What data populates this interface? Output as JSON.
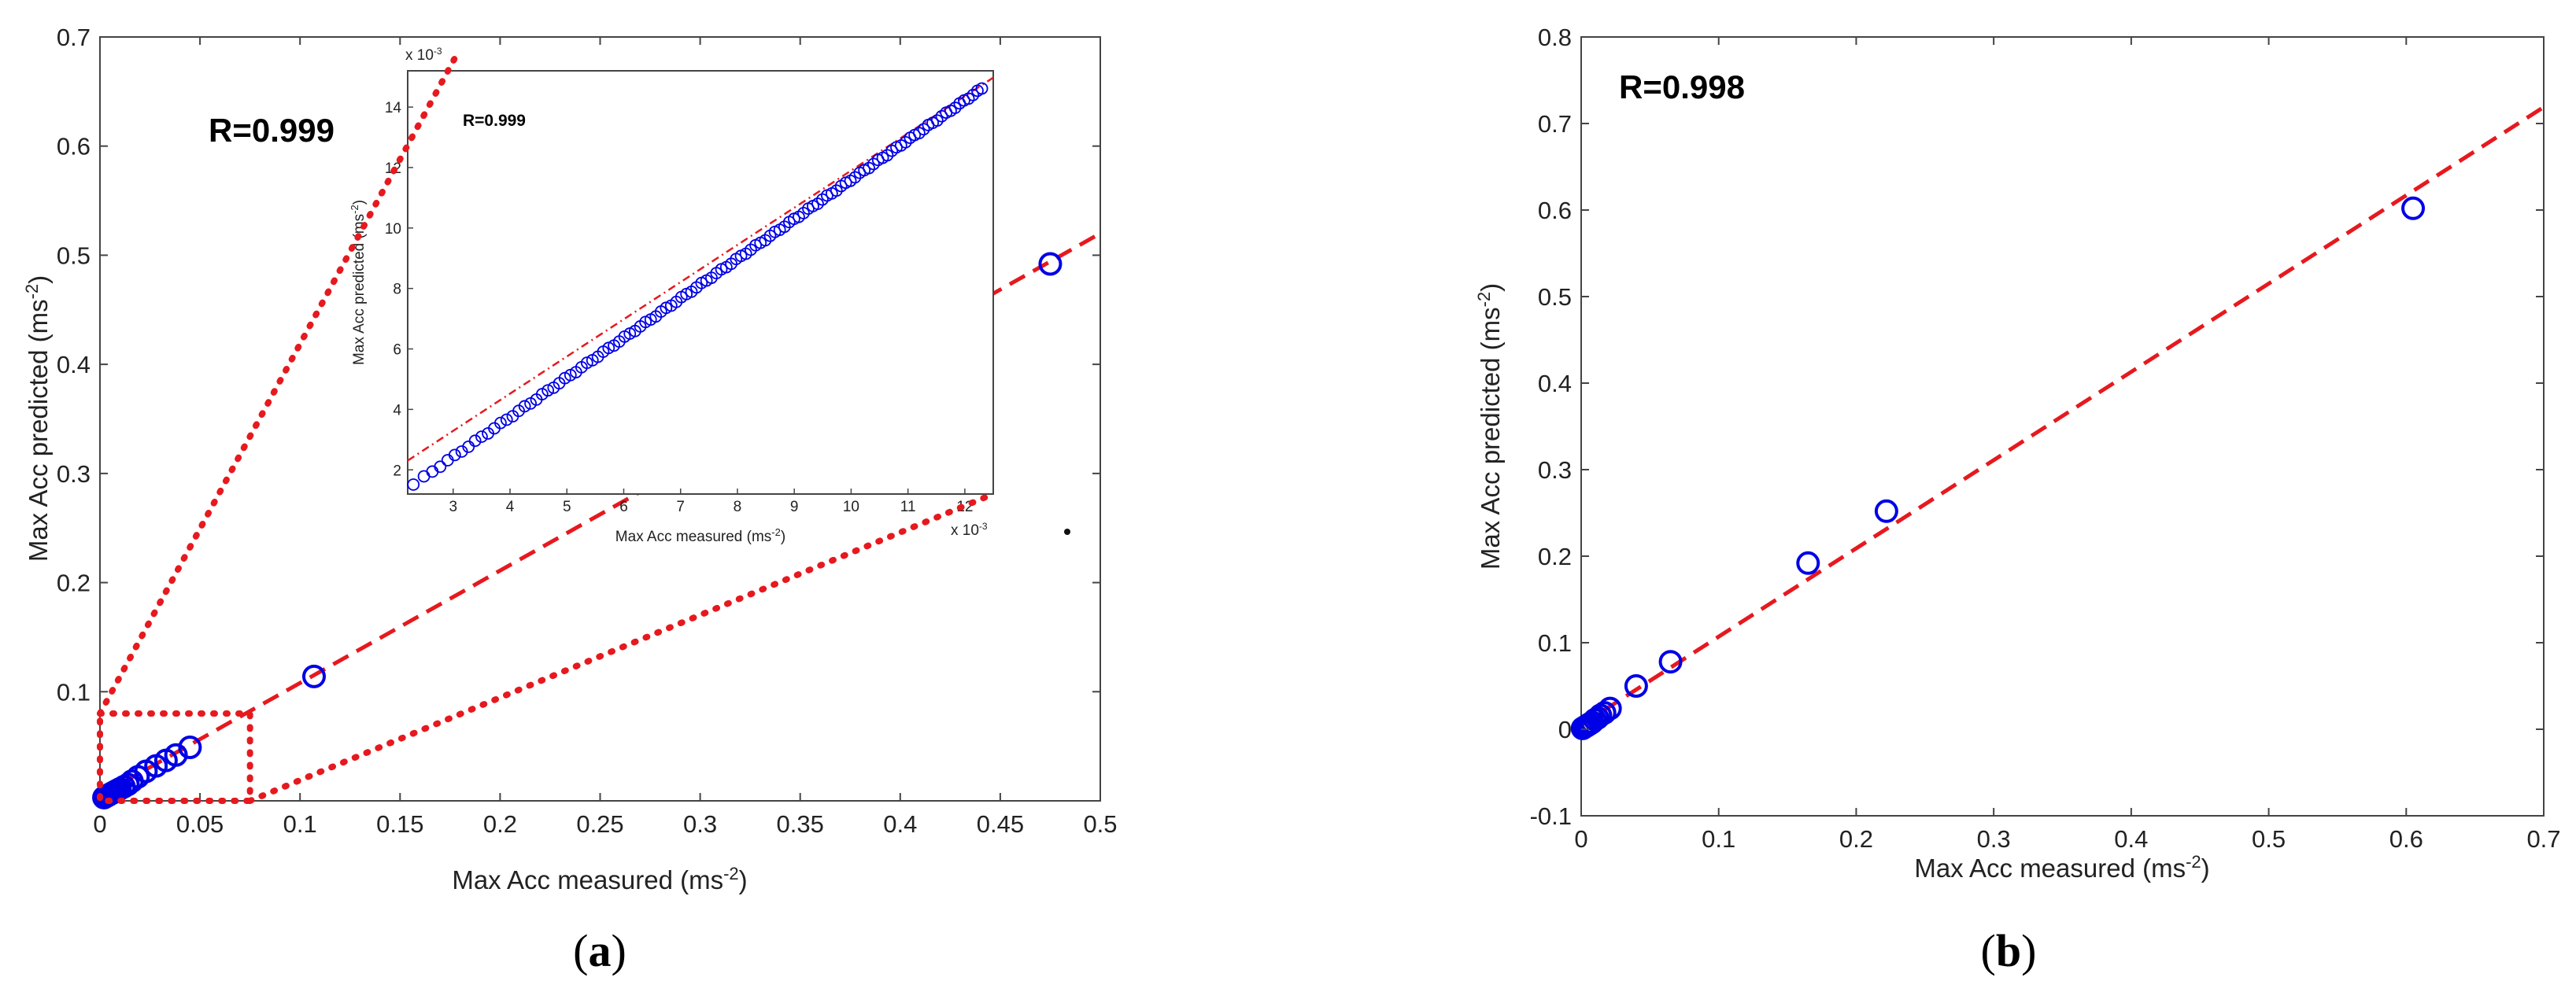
{
  "colors": {
    "marker": "#0000e6",
    "fit_line": "#e6191e",
    "zoom_box": "#e6191e",
    "axis": "#444444"
  },
  "chart_data": [
    {
      "id": "a",
      "type": "scatter",
      "panel_label": "a",
      "annotation": "R=0.999",
      "xlabel": "Max Acc measured (ms-2)",
      "ylabel": "Max Acc predicted (ms-2)",
      "xlim": [
        0,
        0.5
      ],
      "ylim": [
        0,
        0.7
      ],
      "xticks": [
        0,
        0.05,
        0.1,
        0.15,
        0.2,
        0.25,
        0.3,
        0.35,
        0.4,
        0.45,
        0.5
      ],
      "yticks": [
        0.1,
        0.2,
        0.3,
        0.4,
        0.5,
        0.6,
        0.7
      ],
      "xtick_labels": [
        "0",
        "0.05",
        "0.1",
        "0.15",
        "0.2",
        "0.25",
        "0.3",
        "0.35",
        "0.4",
        "0.45",
        "0.5"
      ],
      "ytick_labels": [
        "0.1",
        "0.2",
        "0.3",
        "0.4",
        "0.5",
        "0.6",
        "0.7"
      ],
      "grid": false,
      "fit_line": {
        "slope": 1.03,
        "intercept": 0.005,
        "style": "dashed"
      },
      "zoom_box": {
        "x": [
          0,
          0.075
        ],
        "y": [
          0,
          0.08
        ]
      },
      "points": [
        [
          0.002,
          0.003
        ],
        [
          0.003,
          0.004
        ],
        [
          0.004,
          0.005
        ],
        [
          0.005,
          0.006
        ],
        [
          0.006,
          0.007
        ],
        [
          0.007,
          0.008
        ],
        [
          0.008,
          0.009
        ],
        [
          0.009,
          0.01
        ],
        [
          0.01,
          0.011
        ],
        [
          0.012,
          0.013
        ],
        [
          0.014,
          0.015
        ],
        [
          0.016,
          0.018
        ],
        [
          0.019,
          0.022
        ],
        [
          0.023,
          0.027
        ],
        [
          0.028,
          0.032
        ],
        [
          0.033,
          0.037
        ],
        [
          0.038,
          0.042
        ],
        [
          0.045,
          0.049
        ],
        [
          0.107,
          0.114
        ],
        [
          0.475,
          0.492
        ]
      ],
      "inset": {
        "annotation": "R=0.999",
        "xlabel": "Max Acc measured (ms-2)",
        "ylabel": "Max Acc predicted (ms-2)",
        "x_multiplier": "x 10-3",
        "y_multiplier": "x 10-3",
        "xlim": [
          2.2,
          12.5
        ],
        "ylim": [
          1.2,
          15.2
        ],
        "xticks": [
          3,
          4,
          5,
          6,
          7,
          8,
          9,
          10,
          11,
          12
        ],
        "yticks": [
          2,
          4,
          6,
          8,
          10,
          12,
          14
        ],
        "xtick_labels": [
          "3",
          "4",
          "5",
          "6",
          "7",
          "8",
          "9",
          "10",
          "11",
          "12"
        ],
        "ytick_labels": [
          "2",
          "4",
          "6",
          "8",
          "10",
          "12",
          "14"
        ],
        "fit_line": {
          "slope": 1.23,
          "intercept": -0.4,
          "style": "dash-dot"
        },
        "points_x_range": [
          2.3,
          12.3
        ],
        "points_count": 110
      }
    },
    {
      "id": "b",
      "type": "scatter",
      "panel_label": "b",
      "annotation": "R=0.998",
      "xlabel": "Max Acc measured (ms-2)",
      "ylabel": "Max Acc predicted (ms-2)",
      "xlim": [
        0,
        0.7
      ],
      "ylim": [
        -0.1,
        0.8
      ],
      "xticks": [
        0,
        0.1,
        0.2,
        0.3,
        0.4,
        0.5,
        0.6,
        0.7
      ],
      "yticks": [
        -0.1,
        0,
        0.1,
        0.2,
        0.3,
        0.4,
        0.5,
        0.6,
        0.7,
        0.8
      ],
      "xtick_labels": [
        "0",
        "0.1",
        "0.2",
        "0.3",
        "0.4",
        "0.5",
        "0.6",
        "0.7"
      ],
      "ytick_labels": [
        "-0.1",
        "0",
        "0.1",
        "0.2",
        "0.3",
        "0.4",
        "0.5",
        "0.6",
        "0.7",
        "0.8"
      ],
      "grid": false,
      "fit_line": {
        "slope": 1.02,
        "intercept": 0.005,
        "style": "dashed"
      },
      "points": [
        [
          0.001,
          0.001
        ],
        [
          0.002,
          0.002
        ],
        [
          0.003,
          0.003
        ],
        [
          0.004,
          0.004
        ],
        [
          0.005,
          0.005
        ],
        [
          0.006,
          0.006
        ],
        [
          0.007,
          0.007
        ],
        [
          0.008,
          0.008
        ],
        [
          0.01,
          0.011
        ],
        [
          0.012,
          0.013
        ],
        [
          0.014,
          0.016
        ],
        [
          0.017,
          0.019
        ],
        [
          0.021,
          0.024
        ],
        [
          0.04,
          0.05
        ],
        [
          0.065,
          0.078
        ],
        [
          0.165,
          0.192
        ],
        [
          0.222,
          0.252
        ],
        [
          0.605,
          0.602
        ]
      ]
    }
  ]
}
